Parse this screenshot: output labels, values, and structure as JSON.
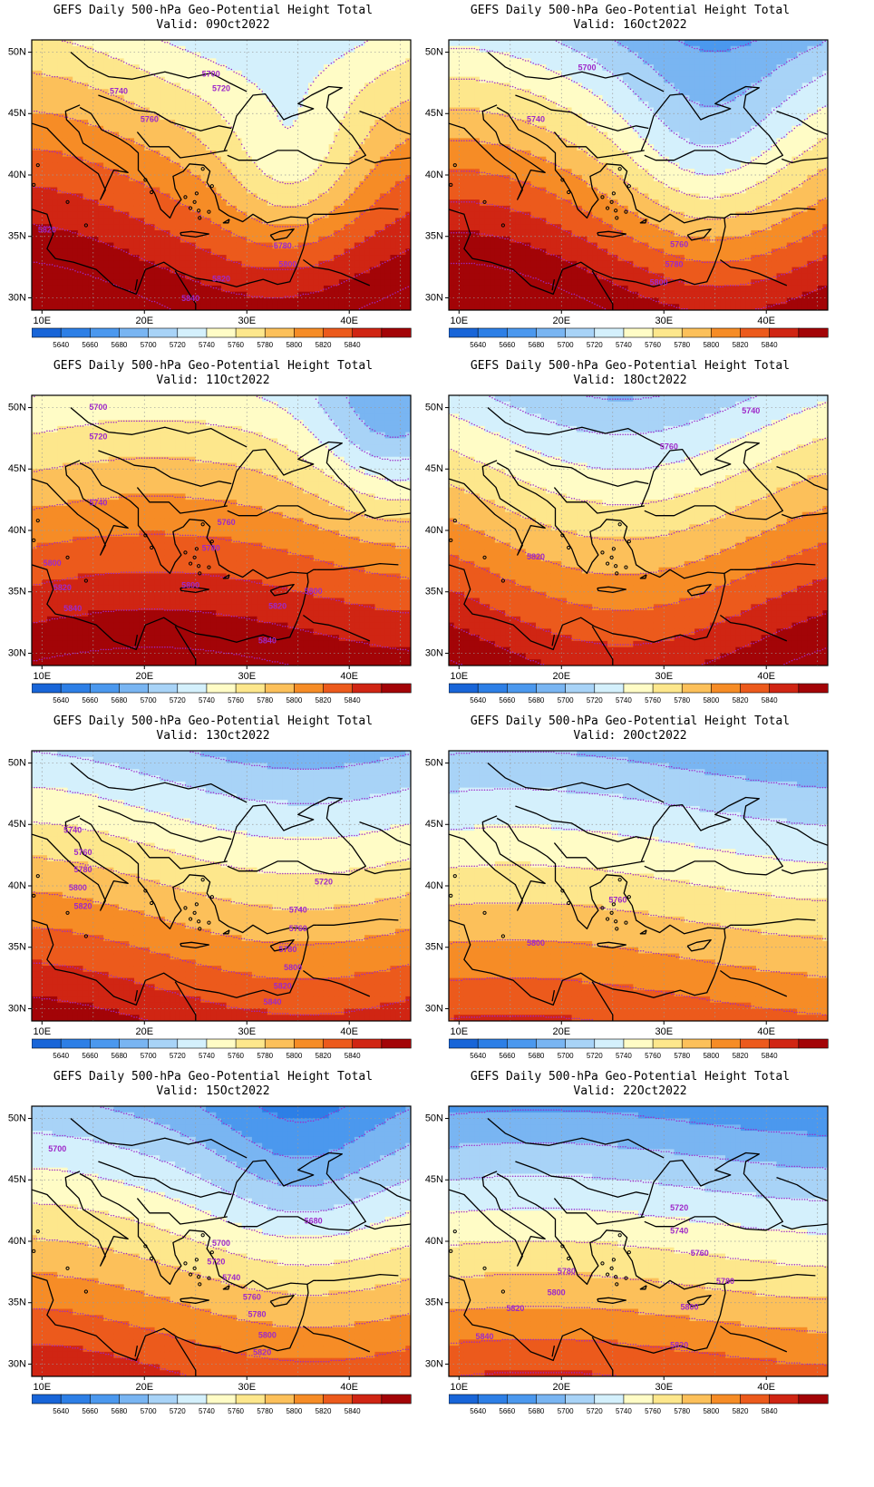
{
  "figure": {
    "title_line": "GEFS Daily 500-hPa Geo-Potential Height Total",
    "valid_prefix": "Valid:"
  },
  "axes": {
    "lon_labels": [
      "10E",
      "20E",
      "30E",
      "40E"
    ],
    "lat_labels": [
      "50N",
      "45N",
      "40N",
      "35N",
      "30N"
    ],
    "lon_range": [
      9,
      46
    ],
    "lat_range": [
      29,
      51
    ]
  },
  "colorbar": {
    "levels": [
      5620,
      5640,
      5660,
      5680,
      5700,
      5720,
      5740,
      5760,
      5780,
      5800,
      5820,
      5840,
      5860
    ],
    "labels": [
      "5640",
      "5660",
      "5680",
      "5700",
      "5720",
      "5740",
      "5760",
      "5780",
      "5800",
      "5820",
      "5840"
    ],
    "colors": [
      "#1865d8",
      "#2d7fe6",
      "#4b98ee",
      "#79b5f2",
      "#a8d3f7",
      "#d4f0fc",
      "#fffcc6",
      "#fde78c",
      "#fcc05a",
      "#f68c26",
      "#ec5a1c",
      "#d02513",
      "#a30407"
    ]
  },
  "contour_color": "#9e28c9",
  "panels": [
    {
      "valid": "09Oct2022",
      "field": {
        "base": 5725,
        "grad": 6.5,
        "amp": 18,
        "k": 0.13,
        "phase": 0.6,
        "lows": [
          {
            "lon": 34.5,
            "lat": 40.5,
            "depth": 45,
            "r": 6.5
          }
        ]
      },
      "contour_labels": [
        {
          "text": "5700",
          "lon": 26.5,
          "lat": 48.2
        },
        {
          "text": "5720",
          "lon": 27.5,
          "lat": 47.0
        },
        {
          "text": "5740",
          "lon": 17.5,
          "lat": 46.8
        },
        {
          "text": "5760",
          "lon": 20.5,
          "lat": 44.5
        },
        {
          "text": "5820",
          "lon": 10.5,
          "lat": 35.5
        },
        {
          "text": "5780",
          "lon": 33.5,
          "lat": 34.2
        },
        {
          "text": "5800",
          "lon": 34.0,
          "lat": 32.7
        },
        {
          "text": "5820",
          "lon": 27.5,
          "lat": 31.5
        },
        {
          "text": "5840",
          "lon": 24.5,
          "lat": 29.9
        }
      ]
    },
    {
      "valid": "16Oct2022",
      "field": {
        "base": 5690,
        "grad": 8,
        "amp": 25,
        "k": 0.12,
        "phase": 0.4,
        "lows": [
          {
            "lon": 34,
            "lat": 42,
            "depth": 35,
            "r": 8
          }
        ]
      },
      "contour_labels": [
        {
          "text": "5700",
          "lon": 22.5,
          "lat": 48.7
        },
        {
          "text": "5740",
          "lon": 17.5,
          "lat": 44.5
        },
        {
          "text": "5760",
          "lon": 31.5,
          "lat": 34.3
        },
        {
          "text": "5780",
          "lon": 31.0,
          "lat": 32.7
        },
        {
          "text": "5800",
          "lon": 29.5,
          "lat": 31.2
        }
      ]
    },
    {
      "valid": "11Oct2022",
      "field": {
        "base": 5715,
        "grad": 6.5,
        "amp": 12,
        "k": 0.1,
        "phase": -0.5,
        "lows": [
          {
            "lon": 44,
            "lat": 49,
            "depth": 50,
            "r": 7
          }
        ]
      },
      "contour_labels": [
        {
          "text": "5700",
          "lon": 15.5,
          "lat": 50.0
        },
        {
          "text": "5720",
          "lon": 15.5,
          "lat": 47.6
        },
        {
          "text": "5740",
          "lon": 15.5,
          "lat": 42.2
        },
        {
          "text": "5760",
          "lon": 28.0,
          "lat": 40.6
        },
        {
          "text": "5780",
          "lon": 26.5,
          "lat": 38.5
        },
        {
          "text": "5800",
          "lon": 11.0,
          "lat": 37.3
        },
        {
          "text": "5820",
          "lon": 12.0,
          "lat": 35.3
        },
        {
          "text": "5800",
          "lon": 24.5,
          "lat": 35.5
        },
        {
          "text": "5800",
          "lon": 36.5,
          "lat": 35.0
        },
        {
          "text": "5840",
          "lon": 13.0,
          "lat": 33.6
        },
        {
          "text": "5820",
          "lon": 33.0,
          "lat": 33.8
        },
        {
          "text": "5840",
          "lon": 32.0,
          "lat": 31.0
        }
      ]
    },
    {
      "valid": "18Oct2022",
      "field": {
        "base": 5700,
        "grad": 7,
        "amp": 22,
        "k": 0.12,
        "phase": 1.6,
        "lows": []
      },
      "contour_labels": [
        {
          "text": "5740",
          "lon": 38.5,
          "lat": 49.7
        },
        {
          "text": "5760",
          "lon": 30.5,
          "lat": 46.8
        },
        {
          "text": "5820",
          "lon": 17.5,
          "lat": 37.8
        }
      ]
    },
    {
      "valid": "13Oct2022",
      "field": {
        "base": 5685,
        "grad": 7,
        "amp": 15,
        "k": 0.11,
        "phase": 0.8,
        "lows": []
      },
      "contour_labels": [
        {
          "text": "5740",
          "lon": 13.0,
          "lat": 44.5
        },
        {
          "text": "5760",
          "lon": 14.0,
          "lat": 42.7
        },
        {
          "text": "5780",
          "lon": 14.0,
          "lat": 41.3
        },
        {
          "text": "5800",
          "lon": 13.5,
          "lat": 39.8
        },
        {
          "text": "5820",
          "lon": 14.0,
          "lat": 38.3
        },
        {
          "text": "5720",
          "lon": 37.5,
          "lat": 40.3
        },
        {
          "text": "5740",
          "lon": 35.0,
          "lat": 38.0
        },
        {
          "text": "5760",
          "lon": 35.0,
          "lat": 36.5
        },
        {
          "text": "5780",
          "lon": 34.0,
          "lat": 34.8
        },
        {
          "text": "5800",
          "lon": 34.5,
          "lat": 33.3
        },
        {
          "text": "5820",
          "lon": 33.5,
          "lat": 31.8
        },
        {
          "text": "5840",
          "lon": 32.5,
          "lat": 30.5
        }
      ]
    },
    {
      "valid": "20Oct2022",
      "field": {
        "base": 5670,
        "grad": 6.5,
        "amp": 10,
        "k": 0.09,
        "phase": 0.2,
        "lows": []
      },
      "contour_labels": [
        {
          "text": "5760",
          "lon": 25.5,
          "lat": 38.8
        },
        {
          "text": "5800",
          "lon": 17.5,
          "lat": 35.3
        }
      ]
    },
    {
      "valid": "15Oct2022",
      "field": {
        "base": 5670,
        "grad": 7,
        "amp": 15,
        "k": 0.11,
        "phase": 0.7,
        "lows": [
          {
            "lon": 35,
            "lat": 48,
            "depth": 25,
            "r": 8
          }
        ]
      },
      "contour_labels": [
        {
          "text": "5700",
          "lon": 11.5,
          "lat": 47.5
        },
        {
          "text": "5680",
          "lon": 36.5,
          "lat": 41.6
        },
        {
          "text": "5700",
          "lon": 27.5,
          "lat": 39.8
        },
        {
          "text": "5720",
          "lon": 27.0,
          "lat": 38.3
        },
        {
          "text": "5740",
          "lon": 28.5,
          "lat": 37.0
        },
        {
          "text": "5760",
          "lon": 30.5,
          "lat": 35.4
        },
        {
          "text": "5780",
          "lon": 31.0,
          "lat": 34.0
        },
        {
          "text": "5800",
          "lon": 32.0,
          "lat": 32.3
        },
        {
          "text": "5820",
          "lon": 31.5,
          "lat": 30.9
        }
      ]
    },
    {
      "valid": "22Oct2022",
      "field": {
        "base": 5650,
        "grad": 7.5,
        "amp": 8,
        "k": 0.1,
        "phase": -0.2,
        "lows": []
      },
      "contour_labels": [
        {
          "text": "5720",
          "lon": 31.5,
          "lat": 42.7
        },
        {
          "text": "5740",
          "lon": 31.5,
          "lat": 40.8
        },
        {
          "text": "5760",
          "lon": 33.5,
          "lat": 39.0
        },
        {
          "text": "5780",
          "lon": 20.5,
          "lat": 37.5
        },
        {
          "text": "5780",
          "lon": 36.0,
          "lat": 36.7
        },
        {
          "text": "5800",
          "lon": 19.5,
          "lat": 35.8
        },
        {
          "text": "5820",
          "lon": 15.5,
          "lat": 34.5
        },
        {
          "text": "5800",
          "lon": 32.5,
          "lat": 34.6
        },
        {
          "text": "5840",
          "lon": 12.5,
          "lat": 32.2
        },
        {
          "text": "5820",
          "lon": 31.5,
          "lat": 31.5
        }
      ]
    }
  ]
}
